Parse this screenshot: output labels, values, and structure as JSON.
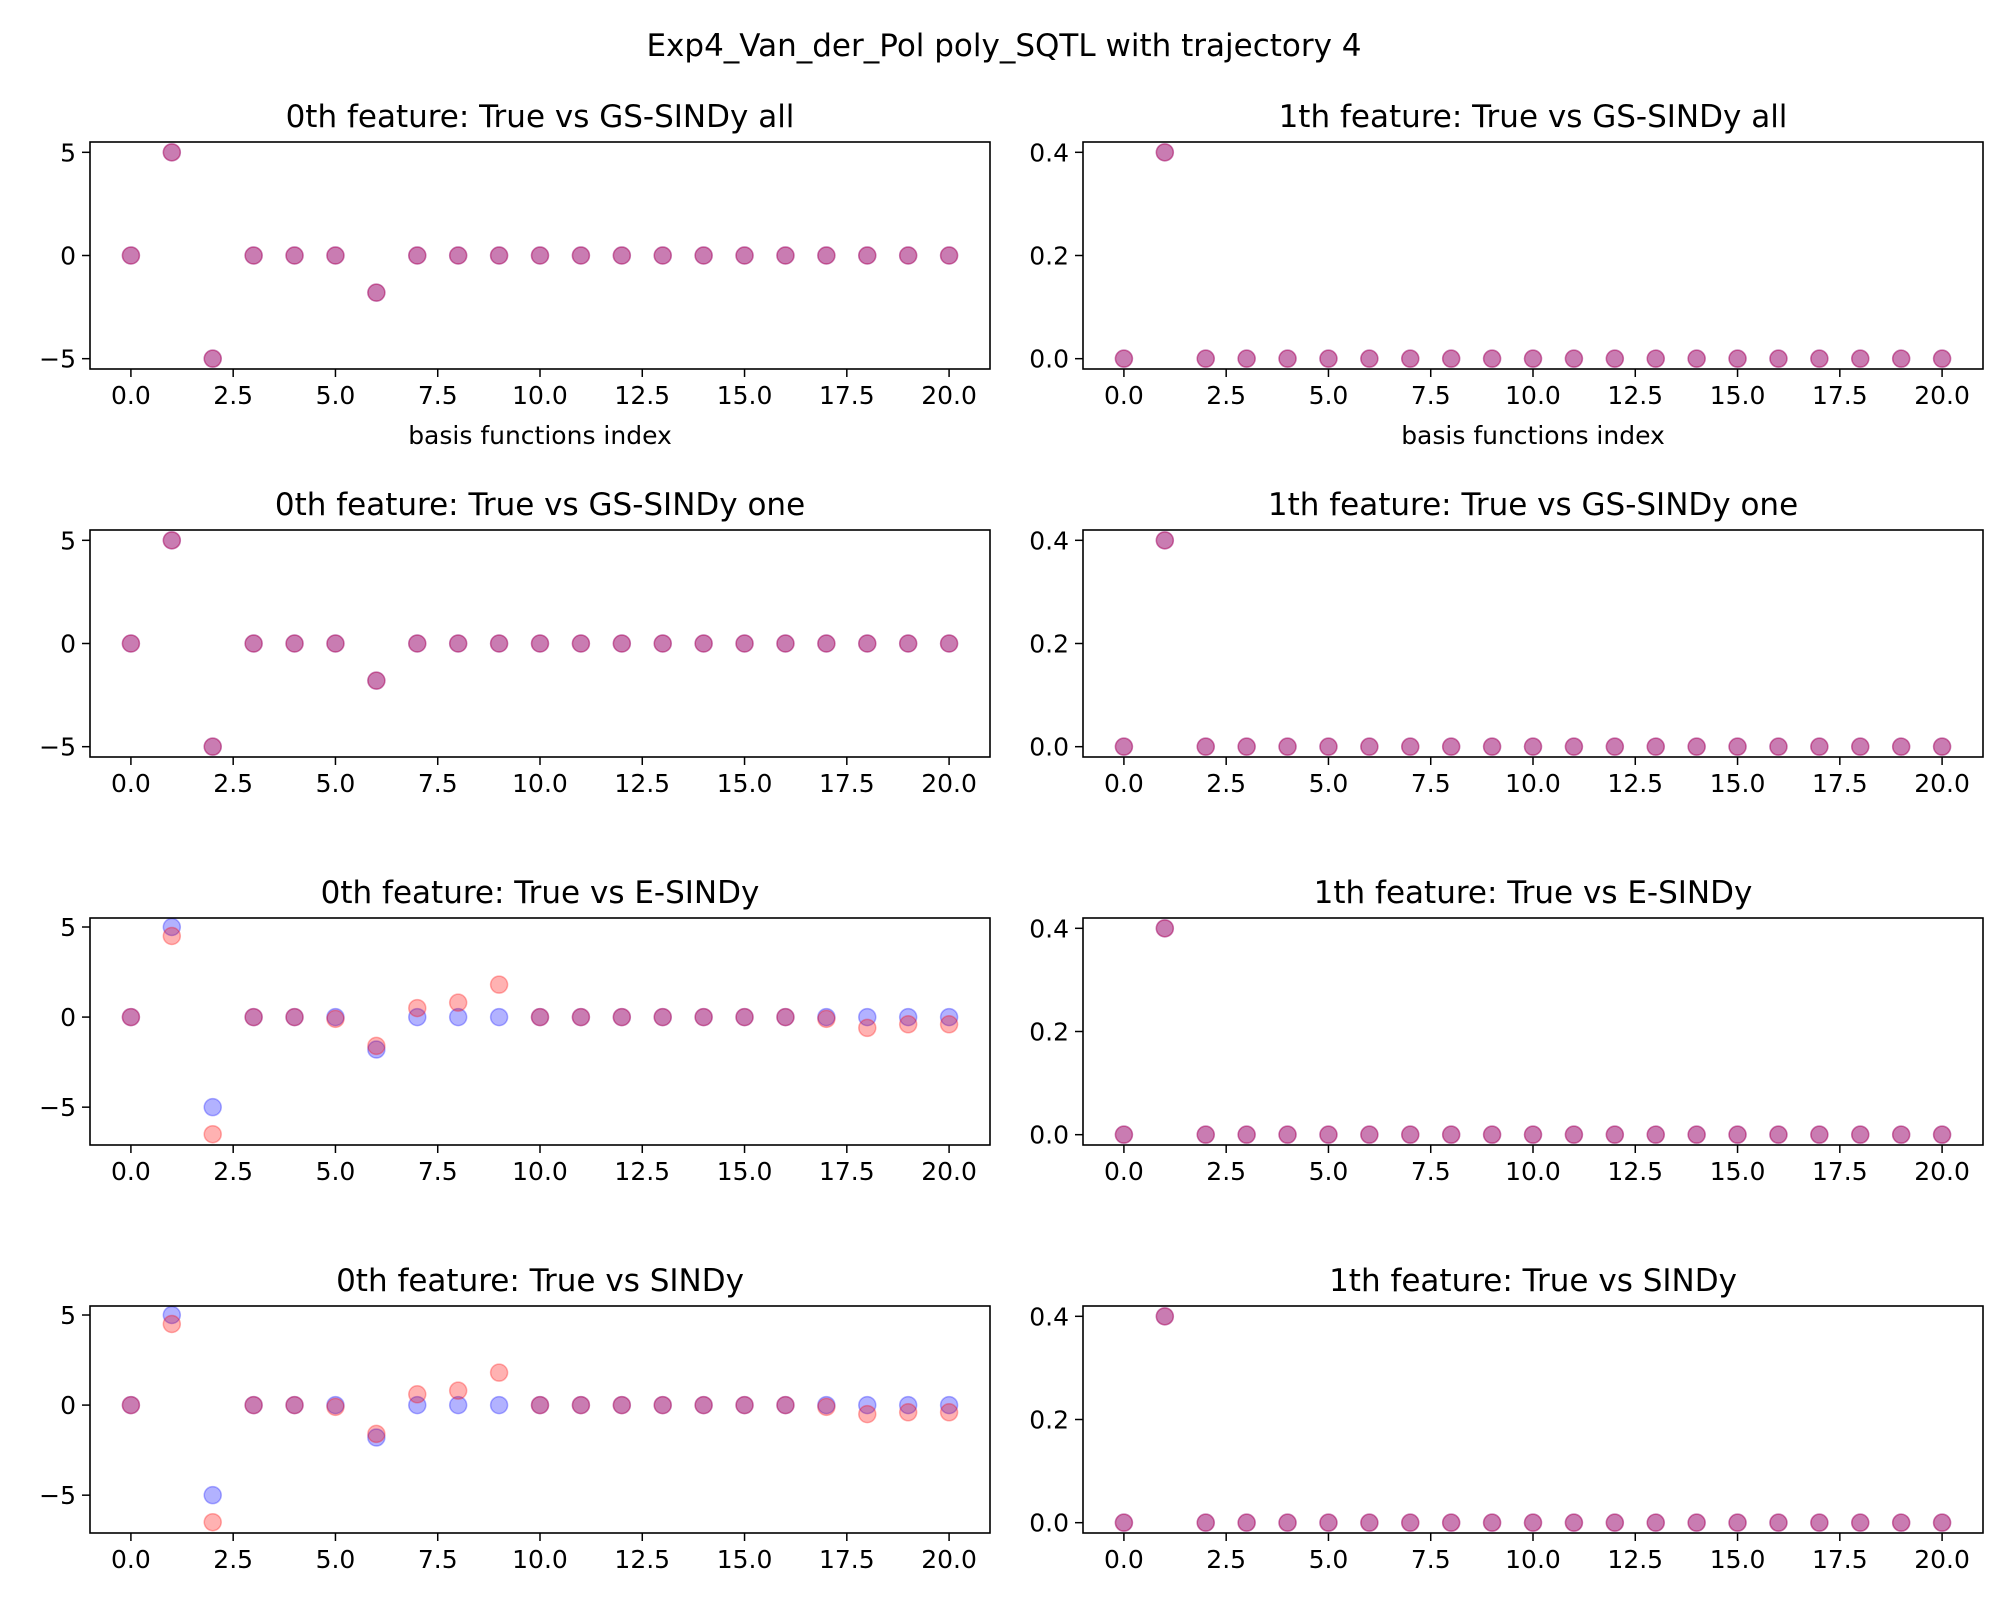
{
  "figure": {
    "suptitle": "Exp4_Van_der_Pol poly_SQTL with trajectory 4"
  },
  "colors": {
    "true_marker": "#0000ff",
    "model_marker": "#ff0000",
    "marker_alpha": 0.3
  },
  "chart_data": [
    {
      "type": "scatter",
      "title": "0th feature: True vs GS-SINDy all",
      "xlabel": "basis functions index",
      "ylabel": "",
      "xlim": [
        -1.0,
        21.0
      ],
      "ylim": [
        -5.5,
        5.5
      ],
      "xticks": [
        "0.0",
        "2.5",
        "5.0",
        "7.5",
        "10.0",
        "12.5",
        "15.0",
        "17.5",
        "20.0"
      ],
      "yticks": [
        "−5",
        "0",
        "5"
      ],
      "x": [
        0,
        1,
        2,
        3,
        4,
        5,
        6,
        7,
        8,
        9,
        10,
        11,
        12,
        13,
        14,
        15,
        16,
        17,
        18,
        19,
        20
      ],
      "series": [
        {
          "values": [
            0,
            5,
            -5,
            0,
            0,
            0,
            -1.8,
            0,
            0,
            0,
            0,
            0,
            0,
            0,
            0,
            0,
            0,
            0,
            0,
            0,
            0
          ]
        },
        {
          "values": [
            0,
            5,
            -5,
            0,
            0,
            0,
            -1.8,
            0,
            0,
            0,
            0,
            0,
            0,
            0,
            0,
            0,
            0,
            0,
            0,
            0,
            0
          ]
        }
      ]
    },
    {
      "type": "scatter",
      "title": "1th feature: True vs GS-SINDy all",
      "xlabel": "basis functions index",
      "ylabel": "",
      "xlim": [
        -1.0,
        21.0
      ],
      "ylim": [
        -0.02,
        0.42
      ],
      "xticks": [
        "0.0",
        "2.5",
        "5.0",
        "7.5",
        "10.0",
        "12.5",
        "15.0",
        "17.5",
        "20.0"
      ],
      "yticks": [
        "0.0",
        "0.2",
        "0.4"
      ],
      "x": [
        0,
        1,
        2,
        3,
        4,
        5,
        6,
        7,
        8,
        9,
        10,
        11,
        12,
        13,
        14,
        15,
        16,
        17,
        18,
        19,
        20
      ],
      "series": [
        {
          "values": [
            0,
            0.4,
            0,
            0,
            0,
            0,
            0,
            0,
            0,
            0,
            0,
            0,
            0,
            0,
            0,
            0,
            0,
            0,
            0,
            0,
            0
          ]
        },
        {
          "values": [
            0,
            0.4,
            0,
            0,
            0,
            0,
            0,
            0,
            0,
            0,
            0,
            0,
            0,
            0,
            0,
            0,
            0,
            0,
            0,
            0,
            0
          ]
        }
      ]
    },
    {
      "type": "scatter",
      "title": "0th feature: True vs GS-SINDy one",
      "xlabel": "",
      "ylabel": "",
      "xlim": [
        -1.0,
        21.0
      ],
      "ylim": [
        -5.5,
        5.5
      ],
      "xticks": [
        "0.0",
        "2.5",
        "5.0",
        "7.5",
        "10.0",
        "12.5",
        "15.0",
        "17.5",
        "20.0"
      ],
      "yticks": [
        "−5",
        "0",
        "5"
      ],
      "x": [
        0,
        1,
        2,
        3,
        4,
        5,
        6,
        7,
        8,
        9,
        10,
        11,
        12,
        13,
        14,
        15,
        16,
        17,
        18,
        19,
        20
      ],
      "series": [
        {
          "values": [
            0,
            5,
            -5,
            0,
            0,
            0,
            -1.8,
            0,
            0,
            0,
            0,
            0,
            0,
            0,
            0,
            0,
            0,
            0,
            0,
            0,
            0
          ]
        },
        {
          "values": [
            0,
            5,
            -5,
            0,
            0,
            0,
            -1.8,
            0,
            0,
            0,
            0,
            0,
            0,
            0,
            0,
            0,
            0,
            0,
            0,
            0,
            0
          ]
        }
      ]
    },
    {
      "type": "scatter",
      "title": "1th feature: True vs GS-SINDy one",
      "xlabel": "",
      "ylabel": "",
      "xlim": [
        -1.0,
        21.0
      ],
      "ylim": [
        -0.02,
        0.42
      ],
      "xticks": [
        "0.0",
        "2.5",
        "5.0",
        "7.5",
        "10.0",
        "12.5",
        "15.0",
        "17.5",
        "20.0"
      ],
      "yticks": [
        "0.0",
        "0.2",
        "0.4"
      ],
      "x": [
        0,
        1,
        2,
        3,
        4,
        5,
        6,
        7,
        8,
        9,
        10,
        11,
        12,
        13,
        14,
        15,
        16,
        17,
        18,
        19,
        20
      ],
      "series": [
        {
          "values": [
            0,
            0.4,
            0,
            0,
            0,
            0,
            0,
            0,
            0,
            0,
            0,
            0,
            0,
            0,
            0,
            0,
            0,
            0,
            0,
            0,
            0
          ]
        },
        {
          "values": [
            0,
            0.4,
            0,
            0,
            0,
            0,
            0,
            0,
            0,
            0,
            0,
            0,
            0,
            0,
            0,
            0,
            0,
            0,
            0,
            0,
            0
          ]
        }
      ]
    },
    {
      "type": "scatter",
      "title": "0th feature: True vs E-SINDy",
      "xlabel": "",
      "ylabel": "",
      "xlim": [
        -1.0,
        21.0
      ],
      "ylim": [
        -7.1,
        5.5
      ],
      "xticks": [
        "0.0",
        "2.5",
        "5.0",
        "7.5",
        "10.0",
        "12.5",
        "15.0",
        "17.5",
        "20.0"
      ],
      "yticks": [
        "−5",
        "0",
        "5"
      ],
      "x": [
        0,
        1,
        2,
        3,
        4,
        5,
        6,
        7,
        8,
        9,
        10,
        11,
        12,
        13,
        14,
        15,
        16,
        17,
        18,
        19,
        20
      ],
      "series": [
        {
          "values": [
            0,
            5,
            -5,
            0,
            0,
            0,
            -1.8,
            0,
            0,
            0,
            0,
            0,
            0,
            0,
            0,
            0,
            0,
            0,
            0,
            0,
            0
          ]
        },
        {
          "values": [
            0,
            4.5,
            -6.5,
            0,
            0,
            -0.1,
            -1.6,
            0.5,
            0.8,
            1.8,
            0,
            0,
            0,
            0,
            0,
            0,
            0,
            -0.1,
            -0.6,
            -0.4,
            -0.4
          ]
        }
      ]
    },
    {
      "type": "scatter",
      "title": "1th feature: True vs E-SINDy",
      "xlabel": "",
      "ylabel": "",
      "xlim": [
        -1.0,
        21.0
      ],
      "ylim": [
        -0.02,
        0.42
      ],
      "xticks": [
        "0.0",
        "2.5",
        "5.0",
        "7.5",
        "10.0",
        "12.5",
        "15.0",
        "17.5",
        "20.0"
      ],
      "yticks": [
        "0.0",
        "0.2",
        "0.4"
      ],
      "x": [
        0,
        1,
        2,
        3,
        4,
        5,
        6,
        7,
        8,
        9,
        10,
        11,
        12,
        13,
        14,
        15,
        16,
        17,
        18,
        19,
        20
      ],
      "series": [
        {
          "values": [
            0,
            0.4,
            0,
            0,
            0,
            0,
            0,
            0,
            0,
            0,
            0,
            0,
            0,
            0,
            0,
            0,
            0,
            0,
            0,
            0,
            0
          ]
        },
        {
          "values": [
            0,
            0.4,
            0,
            0,
            0,
            0,
            0,
            0,
            0,
            0,
            0,
            0,
            0,
            0,
            0,
            0,
            0,
            0,
            0,
            0,
            0
          ]
        }
      ]
    },
    {
      "type": "scatter",
      "title": "0th feature: True vs SINDy",
      "xlabel": "",
      "ylabel": "",
      "xlim": [
        -1.0,
        21.0
      ],
      "ylim": [
        -7.1,
        5.5
      ],
      "xticks": [
        "0.0",
        "2.5",
        "5.0",
        "7.5",
        "10.0",
        "12.5",
        "15.0",
        "17.5",
        "20.0"
      ],
      "yticks": [
        "−5",
        "0",
        "5"
      ],
      "x": [
        0,
        1,
        2,
        3,
        4,
        5,
        6,
        7,
        8,
        9,
        10,
        11,
        12,
        13,
        14,
        15,
        16,
        17,
        18,
        19,
        20
      ],
      "series": [
        {
          "values": [
            0,
            5,
            -5,
            0,
            0,
            0,
            -1.8,
            0,
            0,
            0,
            0,
            0,
            0,
            0,
            0,
            0,
            0,
            0,
            0,
            0,
            0
          ]
        },
        {
          "values": [
            0,
            4.5,
            -6.5,
            0,
            0,
            -0.1,
            -1.6,
            0.6,
            0.8,
            1.8,
            0,
            0,
            0,
            0,
            0,
            0,
            0,
            -0.1,
            -0.5,
            -0.4,
            -0.4
          ]
        }
      ]
    },
    {
      "type": "scatter",
      "title": "1th feature: True vs SINDy",
      "xlabel": "",
      "ylabel": "",
      "xlim": [
        -1.0,
        21.0
      ],
      "ylim": [
        -0.02,
        0.42
      ],
      "xticks": [
        "0.0",
        "2.5",
        "5.0",
        "7.5",
        "10.0",
        "12.5",
        "15.0",
        "17.5",
        "20.0"
      ],
      "yticks": [
        "0.0",
        "0.2",
        "0.4"
      ],
      "x": [
        0,
        1,
        2,
        3,
        4,
        5,
        6,
        7,
        8,
        9,
        10,
        11,
        12,
        13,
        14,
        15,
        16,
        17,
        18,
        19,
        20
      ],
      "series": [
        {
          "values": [
            0,
            0.4,
            0,
            0,
            0,
            0,
            0,
            0,
            0,
            0,
            0,
            0,
            0,
            0,
            0,
            0,
            0,
            0,
            0,
            0,
            0
          ]
        },
        {
          "values": [
            0,
            0.4,
            0,
            0,
            0,
            0,
            0,
            0,
            0,
            0,
            0,
            0,
            0,
            0,
            0,
            0,
            0,
            0,
            0,
            0,
            0
          ]
        }
      ]
    }
  ]
}
